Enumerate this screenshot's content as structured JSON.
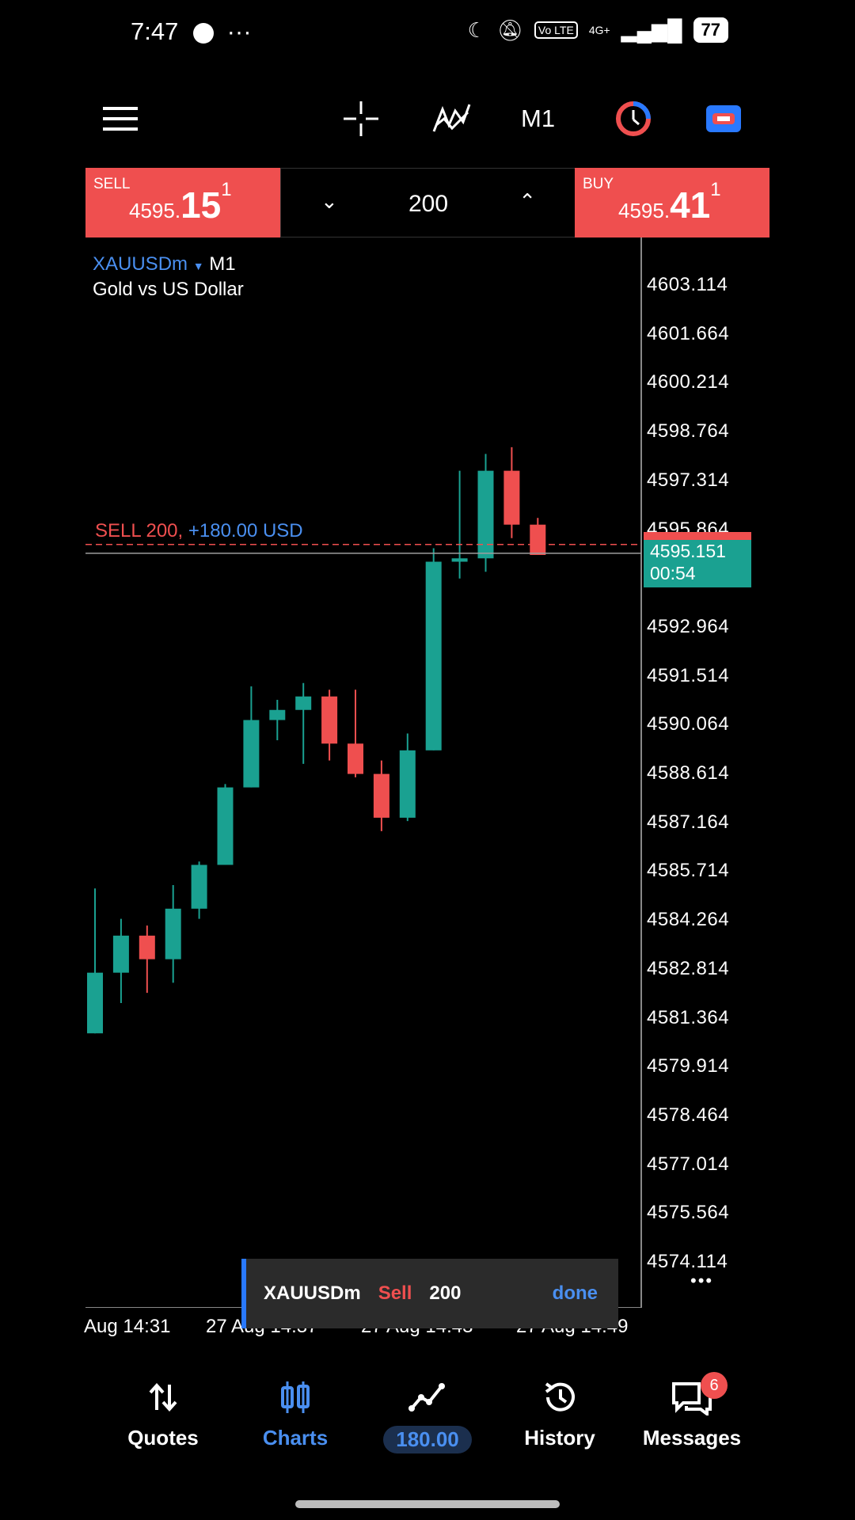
{
  "status_bar": {
    "time": "7:47",
    "battery": "77",
    "network": "4G+",
    "volte": "Vo LTE"
  },
  "toolbar": {
    "timeframe": "M1"
  },
  "trade": {
    "sell": {
      "label": "SELL",
      "price_small": "4595.",
      "price_big": "15",
      "price_sup": "1"
    },
    "buy": {
      "label": "BUY",
      "price_small": "4595.",
      "price_big": "41",
      "price_sup": "1"
    },
    "volume": "200"
  },
  "chart": {
    "symbol": "XAUUSDm",
    "timeframe": "M1",
    "description": "Gold vs US Dollar",
    "position_label": "SELL 200,",
    "position_pl": "+180.00 USD",
    "current_price": "4595.151",
    "countdown": "00:54"
  },
  "chart_data": {
    "type": "candlestick",
    "symbol": "XAUUSDm",
    "timeframe": "M1",
    "y_ticks": [
      "4603.114",
      "4601.664",
      "4600.214",
      "4598.764",
      "4597.314",
      "4595.864",
      "4592.964",
      "4591.514",
      "4590.064",
      "4588.614",
      "4587.164",
      "4585.714",
      "4584.264",
      "4582.814",
      "4581.364",
      "4579.914",
      "4578.464",
      "4577.014",
      "4575.564",
      "4574.114"
    ],
    "x_ticks": [
      "Aug 14:31",
      "27 Aug 14:37",
      "27 Aug 14:43",
      "27 Aug 14:49"
    ],
    "ylim": [
      4573.6,
      4604.5
    ],
    "bid": 4595.151,
    "ask": 4595.411,
    "candles": [
      {
        "o": 4580.9,
        "h": 4585.2,
        "l": 4580.9,
        "c": 4582.7
      },
      {
        "o": 4582.7,
        "h": 4584.3,
        "l": 4581.8,
        "c": 4583.8
      },
      {
        "o": 4583.8,
        "h": 4584.1,
        "l": 4582.1,
        "c": 4583.1
      },
      {
        "o": 4583.1,
        "h": 4585.3,
        "l": 4582.4,
        "c": 4584.6
      },
      {
        "o": 4584.6,
        "h": 4586.0,
        "l": 4584.3,
        "c": 4585.9
      },
      {
        "o": 4585.9,
        "h": 4588.3,
        "l": 4585.9,
        "c": 4588.2
      },
      {
        "o": 4588.2,
        "h": 4591.2,
        "l": 4588.2,
        "c": 4590.2
      },
      {
        "o": 4590.2,
        "h": 4590.8,
        "l": 4589.6,
        "c": 4590.5
      },
      {
        "o": 4590.5,
        "h": 4591.3,
        "l": 4588.9,
        "c": 4590.9
      },
      {
        "o": 4590.9,
        "h": 4591.1,
        "l": 4589.0,
        "c": 4589.5
      },
      {
        "o": 4589.5,
        "h": 4591.1,
        "l": 4588.5,
        "c": 4588.6
      },
      {
        "o": 4588.6,
        "h": 4589.0,
        "l": 4586.9,
        "c": 4587.3
      },
      {
        "o": 4587.3,
        "h": 4589.8,
        "l": 4587.2,
        "c": 4589.3
      },
      {
        "o": 4589.3,
        "h": 4595.3,
        "l": 4589.3,
        "c": 4594.9
      },
      {
        "o": 4594.9,
        "h": 4597.6,
        "l": 4594.4,
        "c": 4595.0
      },
      {
        "o": 4595.0,
        "h": 4598.1,
        "l": 4594.6,
        "c": 4597.6
      },
      {
        "o": 4597.6,
        "h": 4598.3,
        "l": 4595.6,
        "c": 4596.0
      },
      {
        "o": 4596.0,
        "h": 4596.2,
        "l": 4595.1,
        "c": 4595.1
      }
    ]
  },
  "toast": {
    "symbol": "XAUUSDm",
    "side": "Sell",
    "volume": "200",
    "status": "done"
  },
  "nav": {
    "quotes": "Quotes",
    "charts": "Charts",
    "trade_pl": "180.00",
    "history": "History",
    "messages": "Messages",
    "messages_badge": "6"
  },
  "colors": {
    "bull": "#1aa191",
    "bear": "#ef4f4f",
    "accent": "#4a8ff0"
  }
}
